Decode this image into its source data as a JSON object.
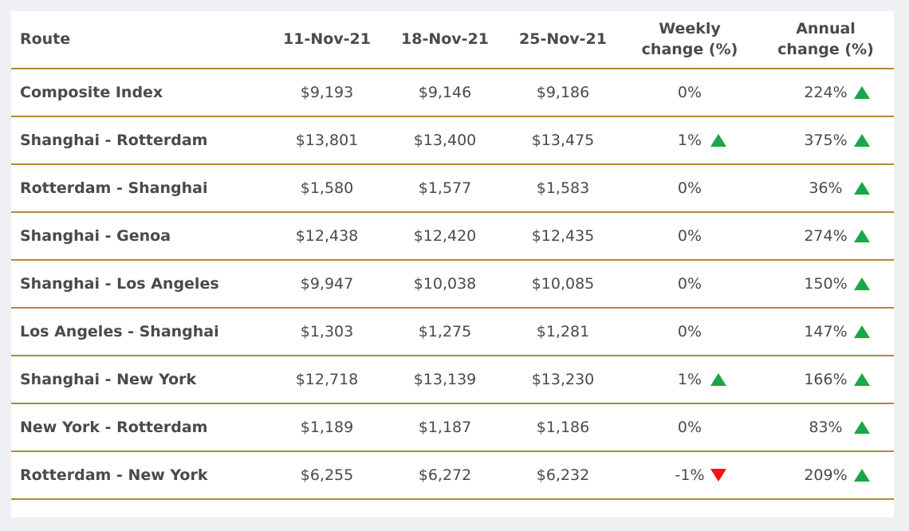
{
  "theme": {
    "page_bg": "#eef0f3",
    "card_bg": "#ffffff",
    "border_gold": "#b08c33",
    "text": "#4a4a4a",
    "up_green": "#1aa64a",
    "down_red": "#f2150d"
  },
  "chart_data": {
    "type": "table",
    "columns": [
      "Route",
      "11-Nov-21",
      "18-Nov-21",
      "25-Nov-21",
      "Weekly\nchange (%)",
      "Annual\nchange (%)"
    ],
    "rows": [
      {
        "route": "Composite Index",
        "rates": [
          "$9,193",
          "$9,146",
          "$9,186"
        ],
        "weekly_change": "0%",
        "weekly_direction": "none",
        "annual_change": "224%",
        "annual_direction": "up"
      },
      {
        "route": "Shanghai - Rotterdam",
        "rates": [
          "$13,801",
          "$13,400",
          "$13,475"
        ],
        "weekly_change": "1%",
        "weekly_direction": "up",
        "annual_change": "375%",
        "annual_direction": "up"
      },
      {
        "route": "Rotterdam - Shanghai",
        "rates": [
          "$1,580",
          "$1,577",
          "$1,583"
        ],
        "weekly_change": "0%",
        "weekly_direction": "none",
        "annual_change": "36%",
        "annual_direction": "up"
      },
      {
        "route": "Shanghai - Genoa",
        "rates": [
          "$12,438",
          "$12,420",
          "$12,435"
        ],
        "weekly_change": "0%",
        "weekly_direction": "none",
        "annual_change": "274%",
        "annual_direction": "up"
      },
      {
        "route": "Shanghai - Los Angeles",
        "rates": [
          "$9,947",
          "$10,038",
          "$10,085"
        ],
        "weekly_change": "0%",
        "weekly_direction": "none",
        "annual_change": "150%",
        "annual_direction": "up"
      },
      {
        "route": "Los Angeles - Shanghai",
        "rates": [
          "$1,303",
          "$1,275",
          "$1,281"
        ],
        "weekly_change": "0%",
        "weekly_direction": "none",
        "annual_change": "147%",
        "annual_direction": "up"
      },
      {
        "route": "Shanghai - New York",
        "rates": [
          "$12,718",
          "$13,139",
          "$13,230"
        ],
        "weekly_change": "1%",
        "weekly_direction": "up",
        "annual_change": "166%",
        "annual_direction": "up"
      },
      {
        "route": "New York - Rotterdam",
        "rates": [
          "$1,189",
          "$1,187",
          "$1,186"
        ],
        "weekly_change": "0%",
        "weekly_direction": "none",
        "annual_change": "83%",
        "annual_direction": "up"
      },
      {
        "route": "Rotterdam - New York",
        "rates": [
          "$6,255",
          "$6,272",
          "$6,232"
        ],
        "weekly_change": "-1%",
        "weekly_direction": "down",
        "annual_change": "209%",
        "annual_direction": "up"
      }
    ]
  }
}
